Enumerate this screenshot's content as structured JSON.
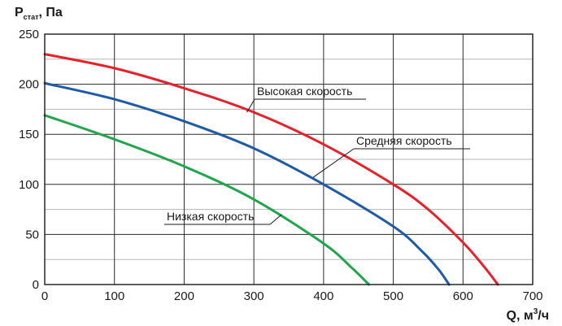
{
  "chart_data": {
    "type": "line",
    "ylabel_main": "P",
    "ylabel_sub": "стат",
    "ylabel_unit": ", Па",
    "xlabel_main": "Q, м",
    "xlabel_sup": "3",
    "xlabel_unit": "/ч",
    "xlim": [
      0,
      700
    ],
    "ylim": [
      0,
      250
    ],
    "x_ticks": [
      "0",
      "100",
      "200",
      "300",
      "400",
      "500",
      "600",
      "700"
    ],
    "y_ticks": [
      "0",
      "50",
      "100",
      "150",
      "200",
      "250"
    ],
    "grid": true,
    "series": [
      {
        "name": "Высокая скорость",
        "color": "#e8202a",
        "x": [
          0,
          100,
          200,
          300,
          400,
          500,
          550,
          600,
          630,
          650
        ],
        "y": [
          230,
          216,
          196,
          172,
          140,
          100,
          75,
          42,
          18,
          0
        ]
      },
      {
        "name": "Средняя скорость",
        "color": "#1f5aa8",
        "x": [
          0,
          100,
          200,
          300,
          400,
          500,
          540,
          565,
          580
        ],
        "y": [
          201,
          185,
          163,
          136,
          100,
          58,
          34,
          15,
          0
        ]
      },
      {
        "name": "Низкая скорость",
        "color": "#1ea64a",
        "x": [
          0,
          100,
          200,
          300,
          400,
          440,
          465
        ],
        "y": [
          169,
          145,
          118,
          85,
          41,
          17,
          0
        ]
      }
    ],
    "annotations": [
      {
        "text": "Высокая скорость",
        "series": 0,
        "at_x": 290,
        "label_x": 316,
        "label_y": 117,
        "line_end_x": 450,
        "anchor_y": 172
      },
      {
        "text": "Средняя скорость",
        "series": 1,
        "at_x": 385,
        "label_x": 438,
        "label_y": 178,
        "line_end_x": 578,
        "anchor_y": 107
      },
      {
        "text": "Низкая скорость",
        "series": 2,
        "at_x": 340,
        "label_x": 205,
        "label_y": 271,
        "line_end_x": 332,
        "anchor_y": 70
      }
    ]
  }
}
